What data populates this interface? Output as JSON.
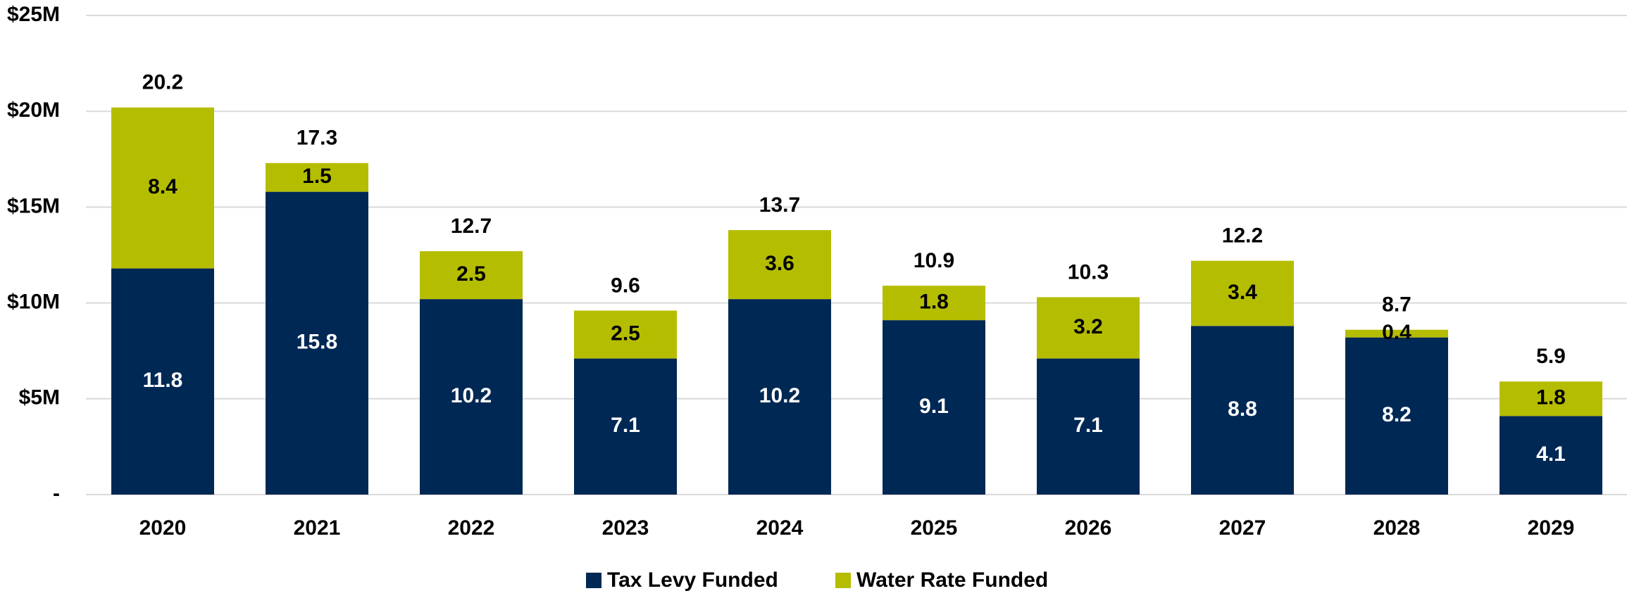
{
  "chart_data": {
    "type": "stacked_bar",
    "categories": [
      "2020",
      "2021",
      "2022",
      "2023",
      "2024",
      "2025",
      "2026",
      "2027",
      "2028",
      "2029"
    ],
    "series": [
      {
        "name": "Tax Levy Funded",
        "color": "#002855",
        "values": [
          11.8,
          15.8,
          10.2,
          7.1,
          10.2,
          9.1,
          7.1,
          8.8,
          8.2,
          4.1
        ]
      },
      {
        "name": "Water Rate Funded",
        "color": "#b5bd00",
        "values": [
          8.4,
          1.5,
          2.5,
          2.5,
          3.6,
          1.8,
          3.2,
          3.4,
          0.4,
          1.8
        ]
      }
    ],
    "totals": [
      20.2,
      17.3,
      12.7,
      9.6,
      13.7,
      10.9,
      10.3,
      12.2,
      8.7,
      5.9
    ],
    "ylim": [
      0,
      25
    ],
    "yticks": [
      {
        "value": 0,
        "label": "-"
      },
      {
        "value": 5,
        "label": "$5M"
      },
      {
        "value": 10,
        "label": "$10M"
      },
      {
        "value": 15,
        "label": "$15M"
      },
      {
        "value": 20,
        "label": "$20M"
      },
      {
        "value": 25,
        "label": "$25M"
      }
    ],
    "grid": true,
    "legend": "bottom"
  }
}
